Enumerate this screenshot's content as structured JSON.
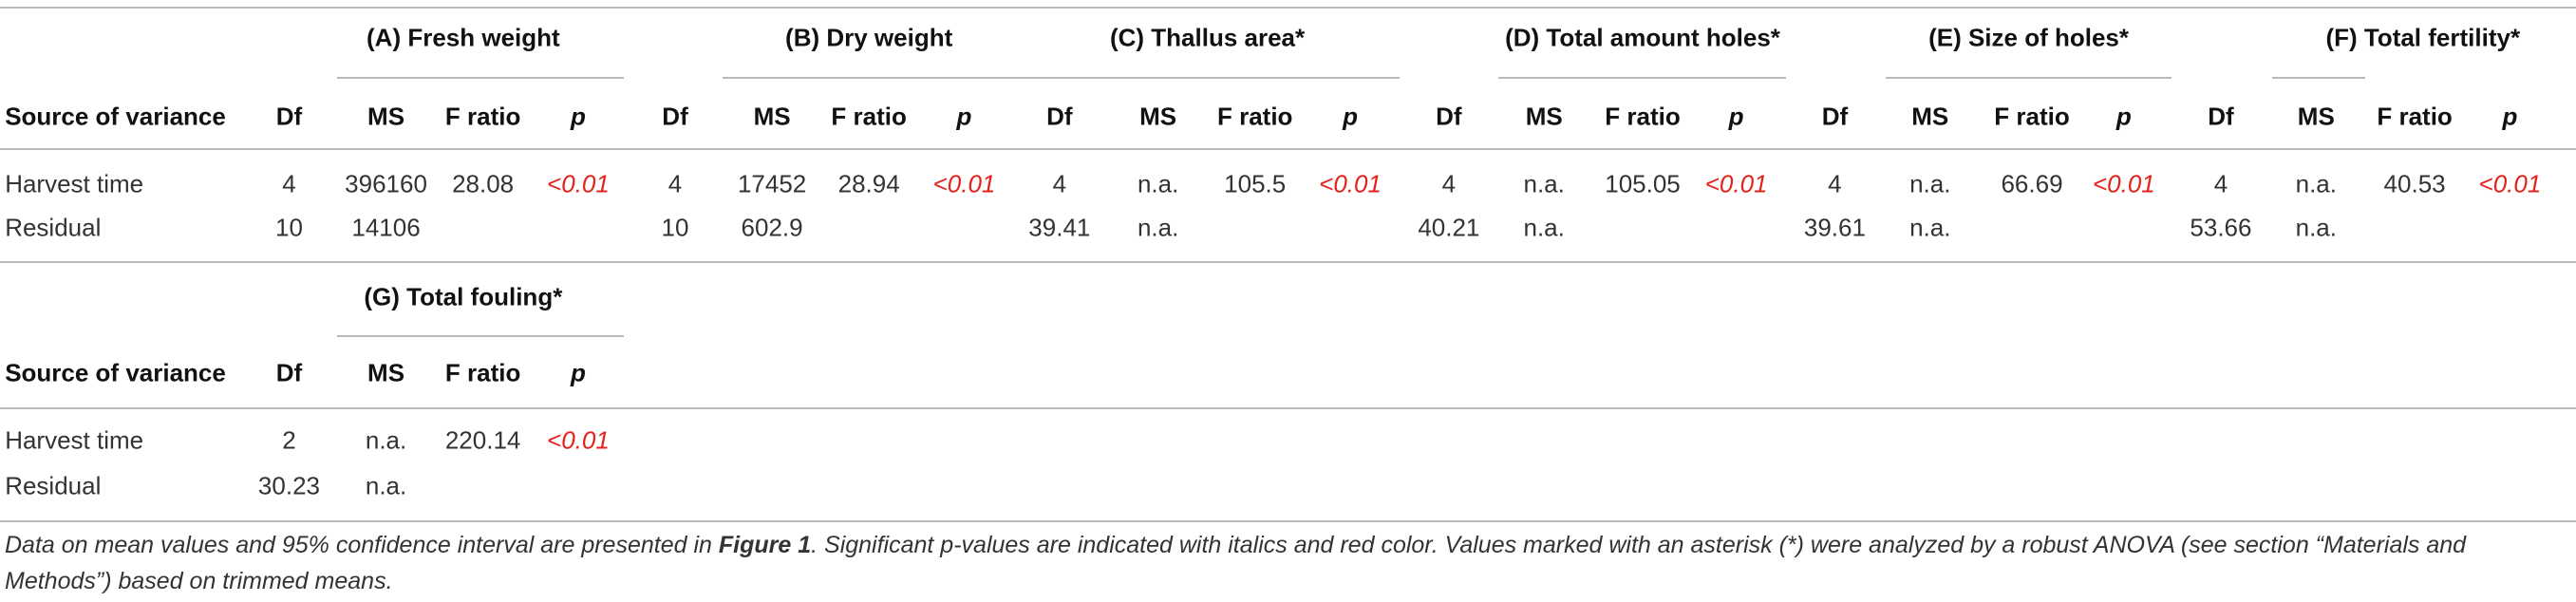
{
  "tables": [
    {
      "groups": [
        "(A) Fresh weight",
        "(B) Dry weight",
        "(C) Thallus area*",
        "(D) Total amount holes*",
        "(E) Size of holes*",
        "(F) Total fertility*"
      ],
      "header": [
        "Source of variance",
        "Df",
        "MS",
        "F ratio",
        "p",
        "Df",
        "MS",
        "F ratio",
        "p",
        "Df",
        "MS",
        "F ratio",
        "p",
        "Df",
        "MS",
        "F ratio",
        "p",
        "Df",
        "MS",
        "F ratio",
        "p",
        "Df",
        "MS",
        "F ratio",
        "p"
      ],
      "rows": [
        [
          "Harvest time",
          4,
          396160,
          28.08,
          "<0.01",
          4,
          17452,
          28.94,
          "<0.01",
          4,
          "n.a.",
          105.5,
          "<0.01",
          4,
          "n.a.",
          105.05,
          "<0.01",
          4,
          "n.a.",
          66.69,
          "<0.01",
          4,
          "n.a.",
          40.53,
          "<0.01"
        ],
        [
          "Residual",
          10,
          14106,
          null,
          null,
          10,
          602.9,
          null,
          null,
          39.41,
          "n.a.",
          null,
          null,
          40.21,
          "n.a.",
          null,
          null,
          39.61,
          "n.a.",
          null,
          null,
          53.66,
          "n.a.",
          null,
          null
        ]
      ]
    },
    {
      "groups": [
        "(G) Total fouling*"
      ],
      "header": [
        "Source of variance",
        "Df",
        "MS",
        "F ratio",
        "p"
      ],
      "rows": [
        [
          "Harvest time",
          2,
          "n.a.",
          220.14,
          "<0.01"
        ],
        [
          "Residual",
          30.23,
          "n.a.",
          null,
          null
        ]
      ]
    }
  ],
  "note": [
    "Data on mean values and 95% confidence interval are presented in ",
    "Figure 1",
    ". Significant p-values are indicated with italics and red color. Values marked with an asterisk (*) were analyzed by a robust ANOVA (see section “Materials and Methods”) based on trimmed means."
  ]
}
